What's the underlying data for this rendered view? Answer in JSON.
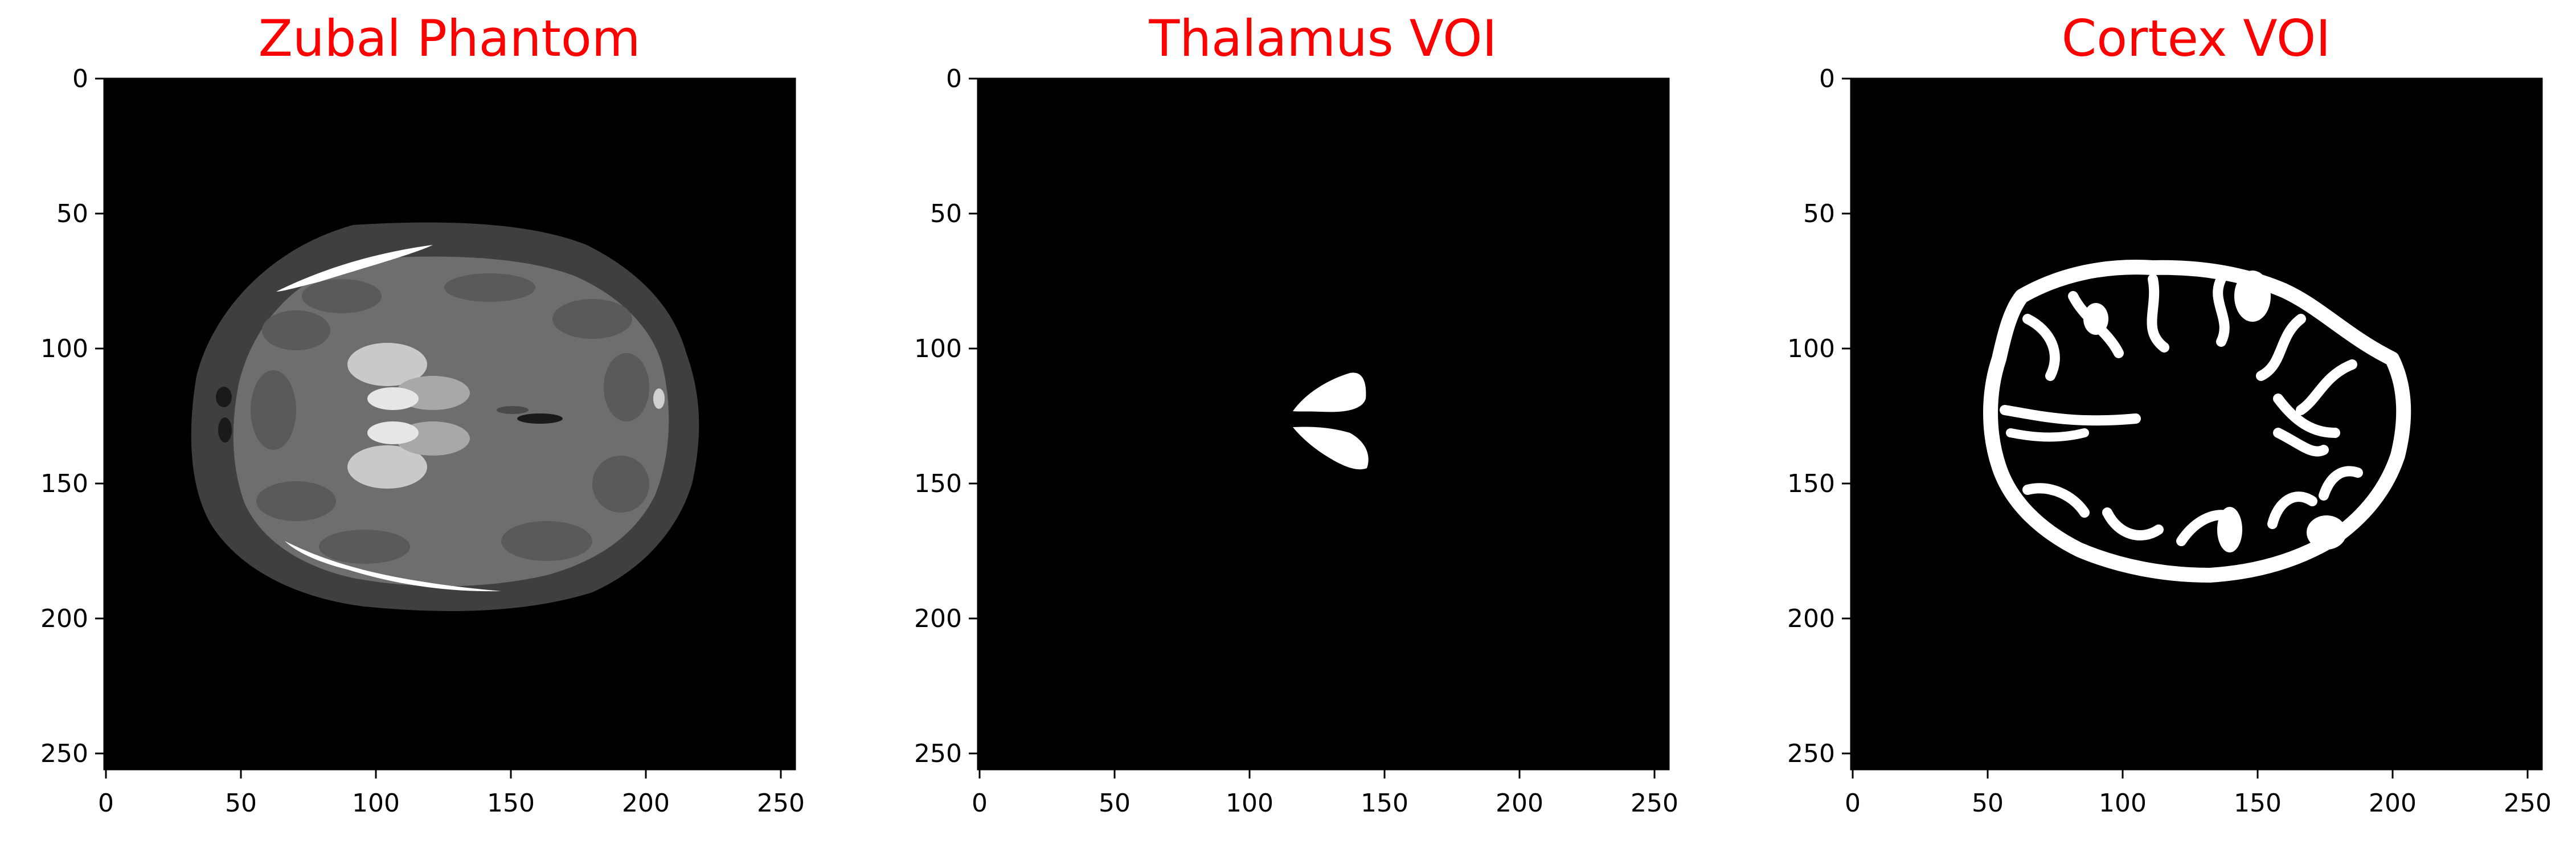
{
  "figure": {
    "title_color": "#ff0000",
    "panels": [
      {
        "id": "phantom",
        "title": "Zubal Phantom",
        "xticks": [
          "0",
          "50",
          "100",
          "150",
          "200",
          "250"
        ],
        "yticks": [
          "0",
          "50",
          "100",
          "150",
          "200",
          "250"
        ]
      },
      {
        "id": "thalamus",
        "title": "Thalamus VOI",
        "xticks": [
          "0",
          "50",
          "100",
          "150",
          "200",
          "250"
        ],
        "yticks": [
          "0",
          "50",
          "100",
          "150",
          "200",
          "250"
        ]
      },
      {
        "id": "cortex",
        "title": "Cortex VOI",
        "xticks": [
          "0",
          "50",
          "100",
          "150",
          "200",
          "250"
        ],
        "yticks": [
          "0",
          "50",
          "100",
          "150",
          "200",
          "250"
        ]
      }
    ]
  }
}
